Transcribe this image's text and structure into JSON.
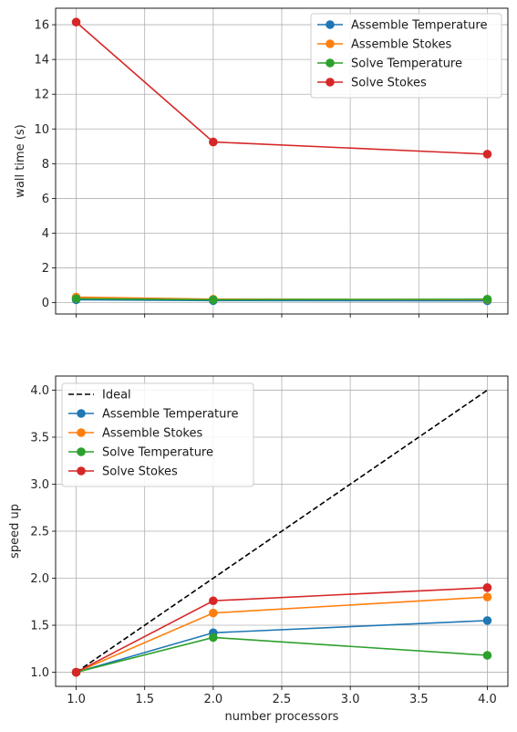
{
  "chart_data": [
    {
      "type": "line",
      "xlabel": "",
      "ylabel": "wall time (s)",
      "x": [
        1,
        2,
        4
      ],
      "xlim": [
        0.85,
        4.15
      ],
      "ylim": [
        -0.65,
        16.95
      ],
      "yticks": [
        0,
        2,
        4,
        6,
        8,
        10,
        12,
        14,
        16
      ],
      "xticks": [
        1.0,
        1.5,
        2.0,
        2.5,
        3.0,
        3.5,
        4.0
      ],
      "show_xtick_labels": false,
      "grid": true,
      "legend_position": "top-right",
      "series": [
        {
          "name": "Assemble Temperature",
          "color": "#1f77b4",
          "values": [
            0.17,
            0.12,
            0.11
          ]
        },
        {
          "name": "Assemble Stokes",
          "color": "#ff7f0e",
          "values": [
            0.32,
            0.2,
            0.18
          ]
        },
        {
          "name": "Solve Temperature",
          "color": "#2ca02c",
          "values": [
            0.23,
            0.17,
            0.2
          ]
        },
        {
          "name": "Solve Stokes",
          "color": "#d62728",
          "values": [
            16.15,
            9.25,
            8.55
          ]
        }
      ]
    },
    {
      "type": "line",
      "xlabel": "number processors",
      "ylabel": "speed up",
      "x": [
        1,
        2,
        4
      ],
      "xlim": [
        0.85,
        4.15
      ],
      "ylim": [
        0.85,
        4.15
      ],
      "yticks": [
        1.0,
        1.5,
        2.0,
        2.5,
        3.0,
        3.5,
        4.0
      ],
      "xticks": [
        1.0,
        1.5,
        2.0,
        2.5,
        3.0,
        3.5,
        4.0
      ],
      "show_xtick_labels": true,
      "grid": true,
      "legend_position": "top-left",
      "ideal": {
        "name": "Ideal",
        "color": "#000000",
        "x": [
          1,
          4
        ],
        "values": [
          1.0,
          4.0
        ]
      },
      "series": [
        {
          "name": "Assemble Temperature",
          "color": "#1f77b4",
          "values": [
            1.0,
            1.42,
            1.55
          ]
        },
        {
          "name": "Assemble Stokes",
          "color": "#ff7f0e",
          "values": [
            1.0,
            1.63,
            1.8
          ]
        },
        {
          "name": "Solve Temperature",
          "color": "#2ca02c",
          "values": [
            1.0,
            1.37,
            1.18
          ]
        },
        {
          "name": "Solve Stokes",
          "color": "#d62728",
          "values": [
            1.0,
            1.76,
            1.9
          ]
        }
      ]
    }
  ]
}
